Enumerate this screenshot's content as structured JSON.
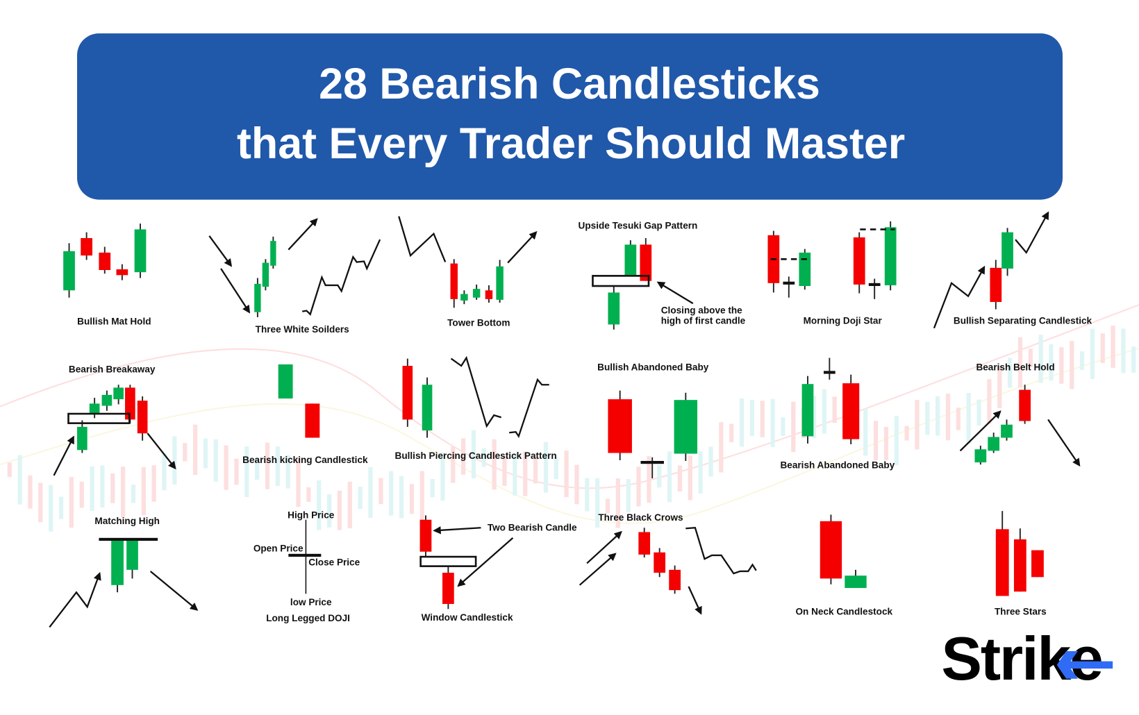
{
  "header": {
    "title_line1": "28 Bearish Candlesticks",
    "title_line2": "that Every Trader Should Master",
    "banner_color": "#2058aa"
  },
  "colors": {
    "bullish": "#00b050",
    "bearish": "#f50000",
    "logo_accent": "#2f6bf5"
  },
  "patterns": {
    "bullish_mat_hold": "Bullish Mat Hold",
    "three_white_soldiers": "Three White Soilders",
    "tower_bottom": "Tower Bottom",
    "upside_tesuki": "Upside Tesuki Gap Pattern",
    "upside_tesuki_note1": "Closing above the",
    "upside_tesuki_note2": "high of first candle",
    "morning_doji_star": "Morning Doji Star",
    "bullish_separating": "Bullish Separating Candlestick",
    "bearish_breakaway": "Bearish Breakaway",
    "bearish_kicking": "Bearish kicking Candlestick",
    "bullish_piercing": "Bullish Piercing Candlestick Pattern",
    "bullish_abandoned_baby": "Bullish Abandoned Baby",
    "bearish_abandoned_baby": "Bearish Abandoned Baby",
    "bearish_belt_hold": "Bearish Belt Hold",
    "matching_high": "Matching High",
    "doji_high": "High Price",
    "doji_open": "Open Price",
    "doji_close": "Close Price",
    "doji_low": "low Price",
    "long_legged_doji": "Long Legged DOJI",
    "two_bearish_candle": "Two Bearish Candle",
    "window_candlestick": "Window Candlestick",
    "three_black_crows": "Three Black Crows",
    "on_neck": "On Neck Candlestock",
    "three_stars": "Three Stars"
  },
  "logo": {
    "text": "Strike"
  }
}
